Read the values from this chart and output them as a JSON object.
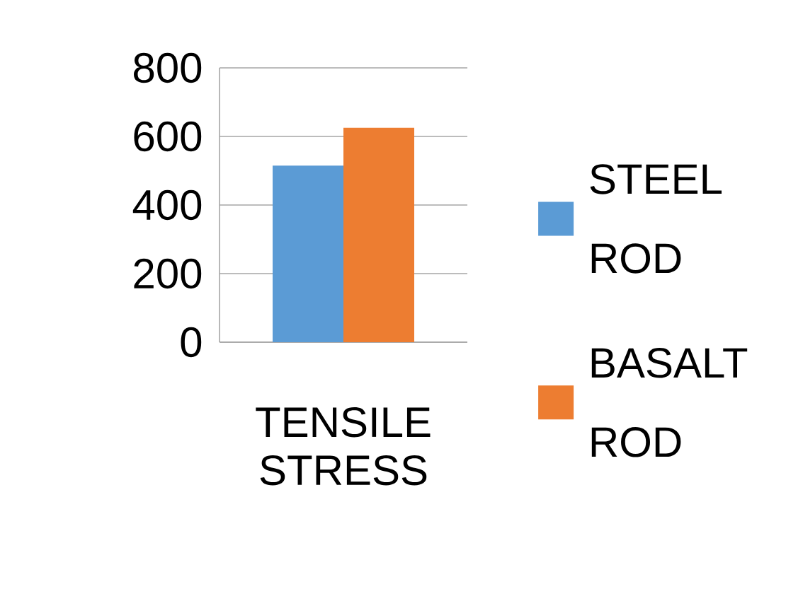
{
  "chart_data": {
    "type": "bar",
    "categories": [
      "TENSILE STRESS"
    ],
    "series": [
      {
        "name": "STEEL ROD",
        "color": "#5b9bd5",
        "values": [
          515
        ]
      },
      {
        "name": "BASALT ROD",
        "color": "#ed7d31",
        "values": [
          625
        ]
      }
    ],
    "ylim": [
      0,
      800
    ],
    "yticks": [
      0,
      200,
      400,
      600,
      800
    ],
    "grid": "y",
    "legend": "right"
  }
}
